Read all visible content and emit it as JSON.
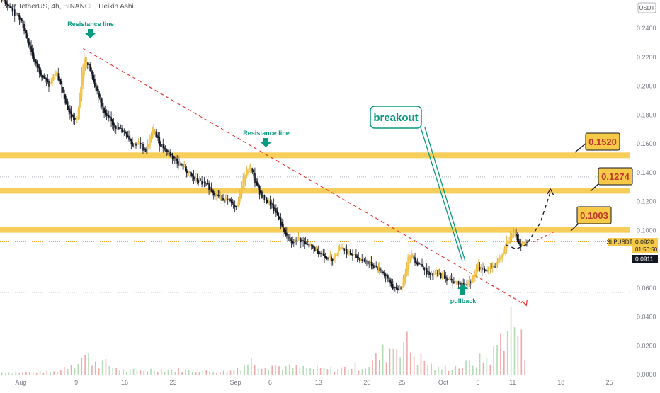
{
  "header": {
    "symbol_line": "SLP TetherUS, 4h, BINANCE, Heikin Ashi",
    "currency_badge": "USDT"
  },
  "price_tag": {
    "ticker": "SLPUSDT",
    "price": "0.0920",
    "countdown": "01:50:50",
    "price2": "0.0911"
  },
  "colors": {
    "candle_fill": "#f5c242",
    "candle_dark": "#131722",
    "level_band": "#f7c948",
    "trendline": "#e53935",
    "annotation": "#089981",
    "label_fill": "#f7c948",
    "projection": "#131722"
  },
  "annotations": {
    "resistance_1": "Resistance line",
    "resistance_2": "Resistance line",
    "breakout": "breakout",
    "pullback": "pullback"
  },
  "levels": [
    {
      "label": "0.1520",
      "value": 0.152
    },
    {
      "label": "0.1274",
      "value": 0.1274
    },
    {
      "label": "0.1003",
      "value": 0.1003
    }
  ],
  "chart_data": {
    "type": "candlestick",
    "title": "SLP TetherUS, 4h, BINANCE, Heikin Ashi",
    "ylim": [
      0.0,
      0.26
    ],
    "y_ticks": [
      "0.2400",
      "0.2200",
      "0.2000",
      "0.1800",
      "0.1600",
      "0.1400",
      "0.1200",
      "0.1000",
      "0.0800",
      "0.0600",
      "0.0400",
      "0.0200",
      "0.0000"
    ],
    "y_tick_values": [
      0.24,
      0.22,
      0.2,
      0.18,
      0.16,
      0.14,
      0.12,
      0.1,
      0.08,
      0.06,
      0.04,
      0.02,
      0.0
    ],
    "x_ticks": [
      "Aug",
      "9",
      "16",
      "23",
      "Sep",
      "6",
      "13",
      "20",
      "25",
      "Oct",
      "6",
      "11",
      "18",
      "25"
    ],
    "x_tick_days": [
      0,
      8,
      15,
      22,
      31,
      36,
      43,
      50,
      55,
      61,
      66,
      71,
      78,
      85
    ],
    "x_range_days": [
      -3,
      88
    ],
    "price_path": [
      [
        -3,
        0.262
      ],
      [
        0,
        0.245
      ],
      [
        2,
        0.215
      ],
      [
        4,
        0.2
      ],
      [
        5,
        0.21
      ],
      [
        6,
        0.195
      ],
      [
        7,
        0.18
      ],
      [
        8,
        0.175
      ],
      [
        9,
        0.22
      ],
      [
        10,
        0.21
      ],
      [
        11,
        0.195
      ],
      [
        12,
        0.18
      ],
      [
        13,
        0.175
      ],
      [
        14,
        0.17
      ],
      [
        15,
        0.168
      ],
      [
        16,
        0.16
      ],
      [
        17,
        0.16
      ],
      [
        18,
        0.155
      ],
      [
        19,
        0.17
      ],
      [
        20,
        0.16
      ],
      [
        21,
        0.155
      ],
      [
        22,
        0.15
      ],
      [
        23,
        0.145
      ],
      [
        24,
        0.14
      ],
      [
        25,
        0.135
      ],
      [
        26,
        0.133
      ],
      [
        27,
        0.13
      ],
      [
        28,
        0.125
      ],
      [
        29,
        0.122
      ],
      [
        30,
        0.12
      ],
      [
        31,
        0.115
      ],
      [
        32,
        0.135
      ],
      [
        33,
        0.145
      ],
      [
        34,
        0.13
      ],
      [
        35,
        0.122
      ],
      [
        36,
        0.118
      ],
      [
        37,
        0.11
      ],
      [
        38,
        0.098
      ],
      [
        39,
        0.09
      ],
      [
        40,
        0.095
      ],
      [
        41,
        0.09
      ],
      [
        42,
        0.088
      ],
      [
        43,
        0.085
      ],
      [
        44,
        0.082
      ],
      [
        45,
        0.08
      ],
      [
        46,
        0.09
      ],
      [
        47,
        0.085
      ],
      [
        48,
        0.082
      ],
      [
        49,
        0.08
      ],
      [
        50,
        0.078
      ],
      [
        51,
        0.075
      ],
      [
        52,
        0.072
      ],
      [
        53,
        0.065
      ],
      [
        54,
        0.058
      ],
      [
        55,
        0.062
      ],
      [
        56,
        0.085
      ],
      [
        57,
        0.078
      ],
      [
        58,
        0.075
      ],
      [
        59,
        0.068
      ],
      [
        60,
        0.07
      ],
      [
        61,
        0.068
      ],
      [
        62,
        0.065
      ],
      [
        63,
        0.064
      ],
      [
        64,
        0.062
      ],
      [
        65,
        0.066
      ],
      [
        66,
        0.075
      ],
      [
        67,
        0.072
      ],
      [
        68,
        0.074
      ],
      [
        69,
        0.08
      ],
      [
        70,
        0.092
      ],
      [
        71,
        0.098
      ],
      [
        72,
        0.09
      ],
      [
        73,
        0.092
      ]
    ],
    "volume_path": [
      [
        -3,
        0.002
      ],
      [
        5,
        0.003
      ],
      [
        9,
        0.02
      ],
      [
        15,
        0.004
      ],
      [
        20,
        0.006
      ],
      [
        30,
        0.003
      ],
      [
        33,
        0.015
      ],
      [
        38,
        0.008
      ],
      [
        45,
        0.006
      ],
      [
        50,
        0.01
      ],
      [
        55,
        0.04
      ],
      [
        57,
        0.02
      ],
      [
        60,
        0.006
      ],
      [
        64,
        0.01
      ],
      [
        68,
        0.02
      ],
      [
        70,
        0.055
      ],
      [
        71,
        0.06
      ],
      [
        72,
        0.04
      ],
      [
        73,
        0.015
      ]
    ],
    "trendlines": [
      {
        "name": "resistance",
        "from": [
          9,
          0.226
        ],
        "to": [
          73,
          0.048
        ],
        "style": "dashed"
      }
    ],
    "projection": [
      [
        70,
        0.09
      ],
      [
        71.5,
        0.087
      ],
      [
        73,
        0.09
      ],
      [
        75,
        0.105
      ],
      [
        76.5,
        0.127
      ]
    ],
    "projection_alt": [
      [
        74,
        0.092
      ],
      [
        77,
        0.099
      ]
    ],
    "grid": false,
    "legend": "none"
  }
}
